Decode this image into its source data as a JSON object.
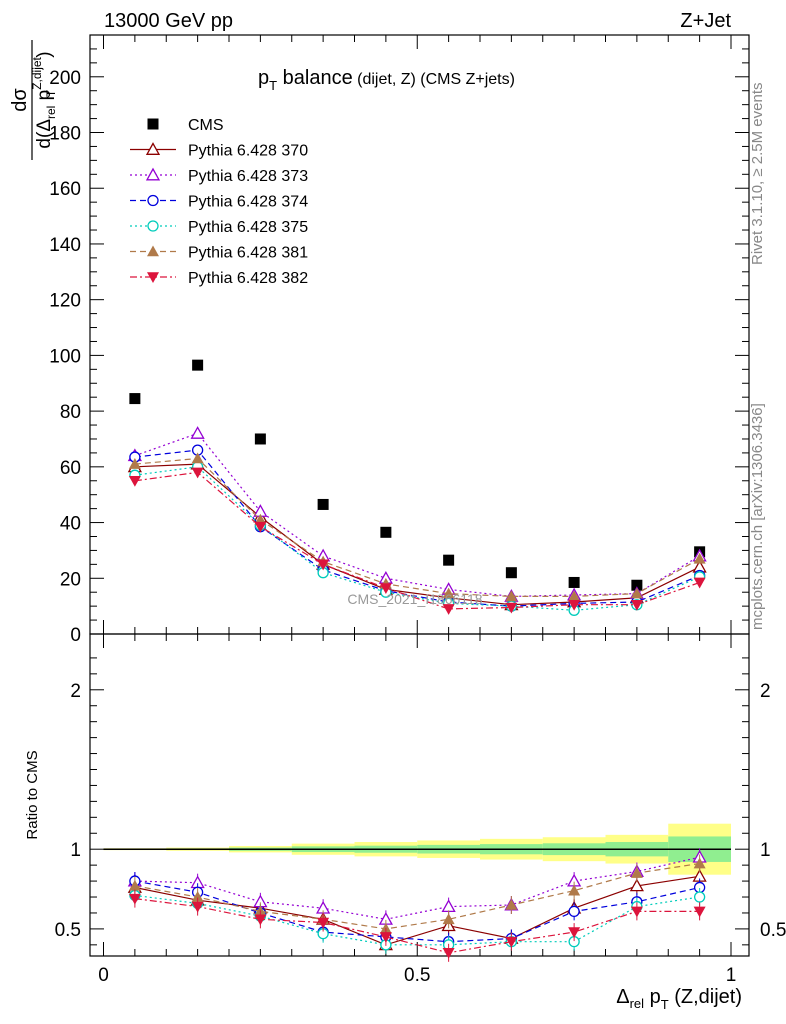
{
  "header": {
    "energy": "13000 GeV pp",
    "process": "Z+Jet"
  },
  "side_text": {
    "rivet": "Rivet 3.1.10, ≥ 2.5M events",
    "mcplots": "mcplots.cern.ch [arXiv:1306.3436]"
  },
  "watermark": "CMS_2021_I1866118",
  "title": {
    "main_pre": "p",
    "main_sub": "T",
    "main_post": " balance",
    "small": " (dijet, Z) (CMS Z+jets)"
  },
  "ylabel_top": {
    "num": "dσ",
    "den_pre": "d(Δ",
    "den_sub": "rel",
    "den_mid": " p",
    "den_sup": "Z,dijet",
    "den_sub2": "T",
    "den_post": ")"
  },
  "ylabel_bottom": "Ratio to CMS",
  "xlabel": {
    "pre": "Δ",
    "sub": "rel",
    "mid": " p",
    "sub2": "T",
    "post": " (Z,dijet)"
  },
  "chart_data": [
    {
      "type": "scatter",
      "panel": "main",
      "xlim": [
        0,
        1
      ],
      "ylim": [
        0,
        215
      ],
      "y_ticks": [
        0,
        20,
        40,
        60,
        80,
        100,
        120,
        140,
        160,
        180,
        200
      ],
      "y_tick_labels": [
        "0",
        "20",
        "40",
        "60",
        "80",
        "100",
        "120",
        "140",
        "160",
        "180",
        "200"
      ],
      "x": [
        0.05,
        0.15,
        0.25,
        0.35,
        0.45,
        0.55,
        0.65,
        0.75,
        0.85,
        0.95
      ],
      "series": [
        {
          "name": "CMS",
          "marker": "square-filled",
          "color": "#000000",
          "line": "none",
          "values": [
            84.5,
            96.5,
            70,
            46.5,
            36.5,
            26.5,
            22,
            18.5,
            17.5,
            29.5
          ]
        },
        {
          "name": "Pythia 6.428 370",
          "marker": "triangle-open",
          "color": "#8b0000",
          "line": "solid",
          "values": [
            60,
            61,
            42,
            25,
            16,
            13,
            10.5,
            11.5,
            13,
            24
          ]
        },
        {
          "name": "Pythia 6.428 373",
          "marker": "triangle-open",
          "color": "#9400d3",
          "line": "dotted",
          "values": [
            64,
            72,
            44,
            28,
            20,
            16,
            13.5,
            14,
            14.5,
            28
          ]
        },
        {
          "name": "Pythia 6.428 374",
          "marker": "circle-open",
          "color": "#0000dd",
          "line": "dashed",
          "values": [
            63.5,
            66,
            38.5,
            23,
            15.5,
            11.5,
            10,
            11,
            11.5,
            21
          ]
        },
        {
          "name": "Pythia 6.428 375",
          "marker": "circle-open",
          "color": "#00ccbb",
          "line": "dotted",
          "values": [
            57,
            60,
            39,
            22,
            15,
            11,
            10,
            8.5,
            10.5,
            20.5
          ]
        },
        {
          "name": "Pythia 6.428 381",
          "marker": "triangle-filled",
          "color": "#b07a4a",
          "line": "dashed",
          "values": [
            61,
            63,
            41,
            26,
            18,
            14.5,
            13.5,
            13.5,
            14.5,
            27
          ]
        },
        {
          "name": "Pythia 6.428 382",
          "marker": "triangle-down-filled",
          "color": "#dc143c",
          "line": "dashdot",
          "values": [
            55,
            58,
            38.5,
            25,
            16.5,
            9,
            9.5,
            10.5,
            10.5,
            18.5
          ]
        }
      ],
      "legend_position": "top-left"
    },
    {
      "type": "scatter",
      "panel": "ratio",
      "xlim": [
        0,
        1
      ],
      "ylim": [
        0.33,
        2.35
      ],
      "y_ticks": [
        0.5,
        1,
        2
      ],
      "y_tick_labels": [
        "0.5",
        "1",
        "2"
      ],
      "x_ticks": [
        0,
        0.5,
        1
      ],
      "x_tick_labels": [
        "0",
        "0.5",
        "1"
      ],
      "reference": 1,
      "bands": {
        "edges": [
          0,
          0.1,
          0.2,
          0.3,
          0.4,
          0.5,
          0.6,
          0.7,
          0.8,
          0.9,
          1.0
        ],
        "inner_color": "#90ee90",
        "outer_color": "#ffff88",
        "inner_half_width": [
          0.003,
          0.005,
          0.01,
          0.018,
          0.022,
          0.027,
          0.032,
          0.037,
          0.045,
          0.08
        ],
        "outer_half_width": [
          0.006,
          0.01,
          0.02,
          0.035,
          0.045,
          0.055,
          0.065,
          0.075,
          0.09,
          0.16
        ]
      },
      "x": [
        0.05,
        0.15,
        0.25,
        0.35,
        0.45,
        0.55,
        0.65,
        0.75,
        0.85,
        0.95
      ],
      "series": [
        {
          "name": "Pythia 6.428 370",
          "values": [
            0.76,
            0.68,
            0.63,
            0.56,
            0.4,
            0.52,
            0.44,
            0.63,
            0.77,
            0.83
          ]
        },
        {
          "name": "Pythia 6.428 373",
          "values": [
            0.8,
            0.79,
            0.67,
            0.63,
            0.56,
            0.64,
            0.65,
            0.8,
            0.86,
            0.95
          ]
        },
        {
          "name": "Pythia 6.428 374",
          "values": [
            0.8,
            0.73,
            0.6,
            0.48,
            0.45,
            0.42,
            0.44,
            0.61,
            0.67,
            0.76
          ]
        },
        {
          "name": "Pythia 6.428 375",
          "values": [
            0.71,
            0.66,
            0.58,
            0.47,
            0.4,
            0.4,
            0.42,
            0.42,
            0.64,
            0.7
          ]
        },
        {
          "name": "Pythia 6.428 381",
          "values": [
            0.77,
            0.7,
            0.61,
            0.56,
            0.5,
            0.56,
            0.65,
            0.74,
            0.85,
            0.91
          ]
        },
        {
          "name": "Pythia 6.428 382",
          "values": [
            0.69,
            0.64,
            0.56,
            0.54,
            0.45,
            0.35,
            0.42,
            0.48,
            0.61,
            0.61
          ]
        }
      ]
    }
  ]
}
